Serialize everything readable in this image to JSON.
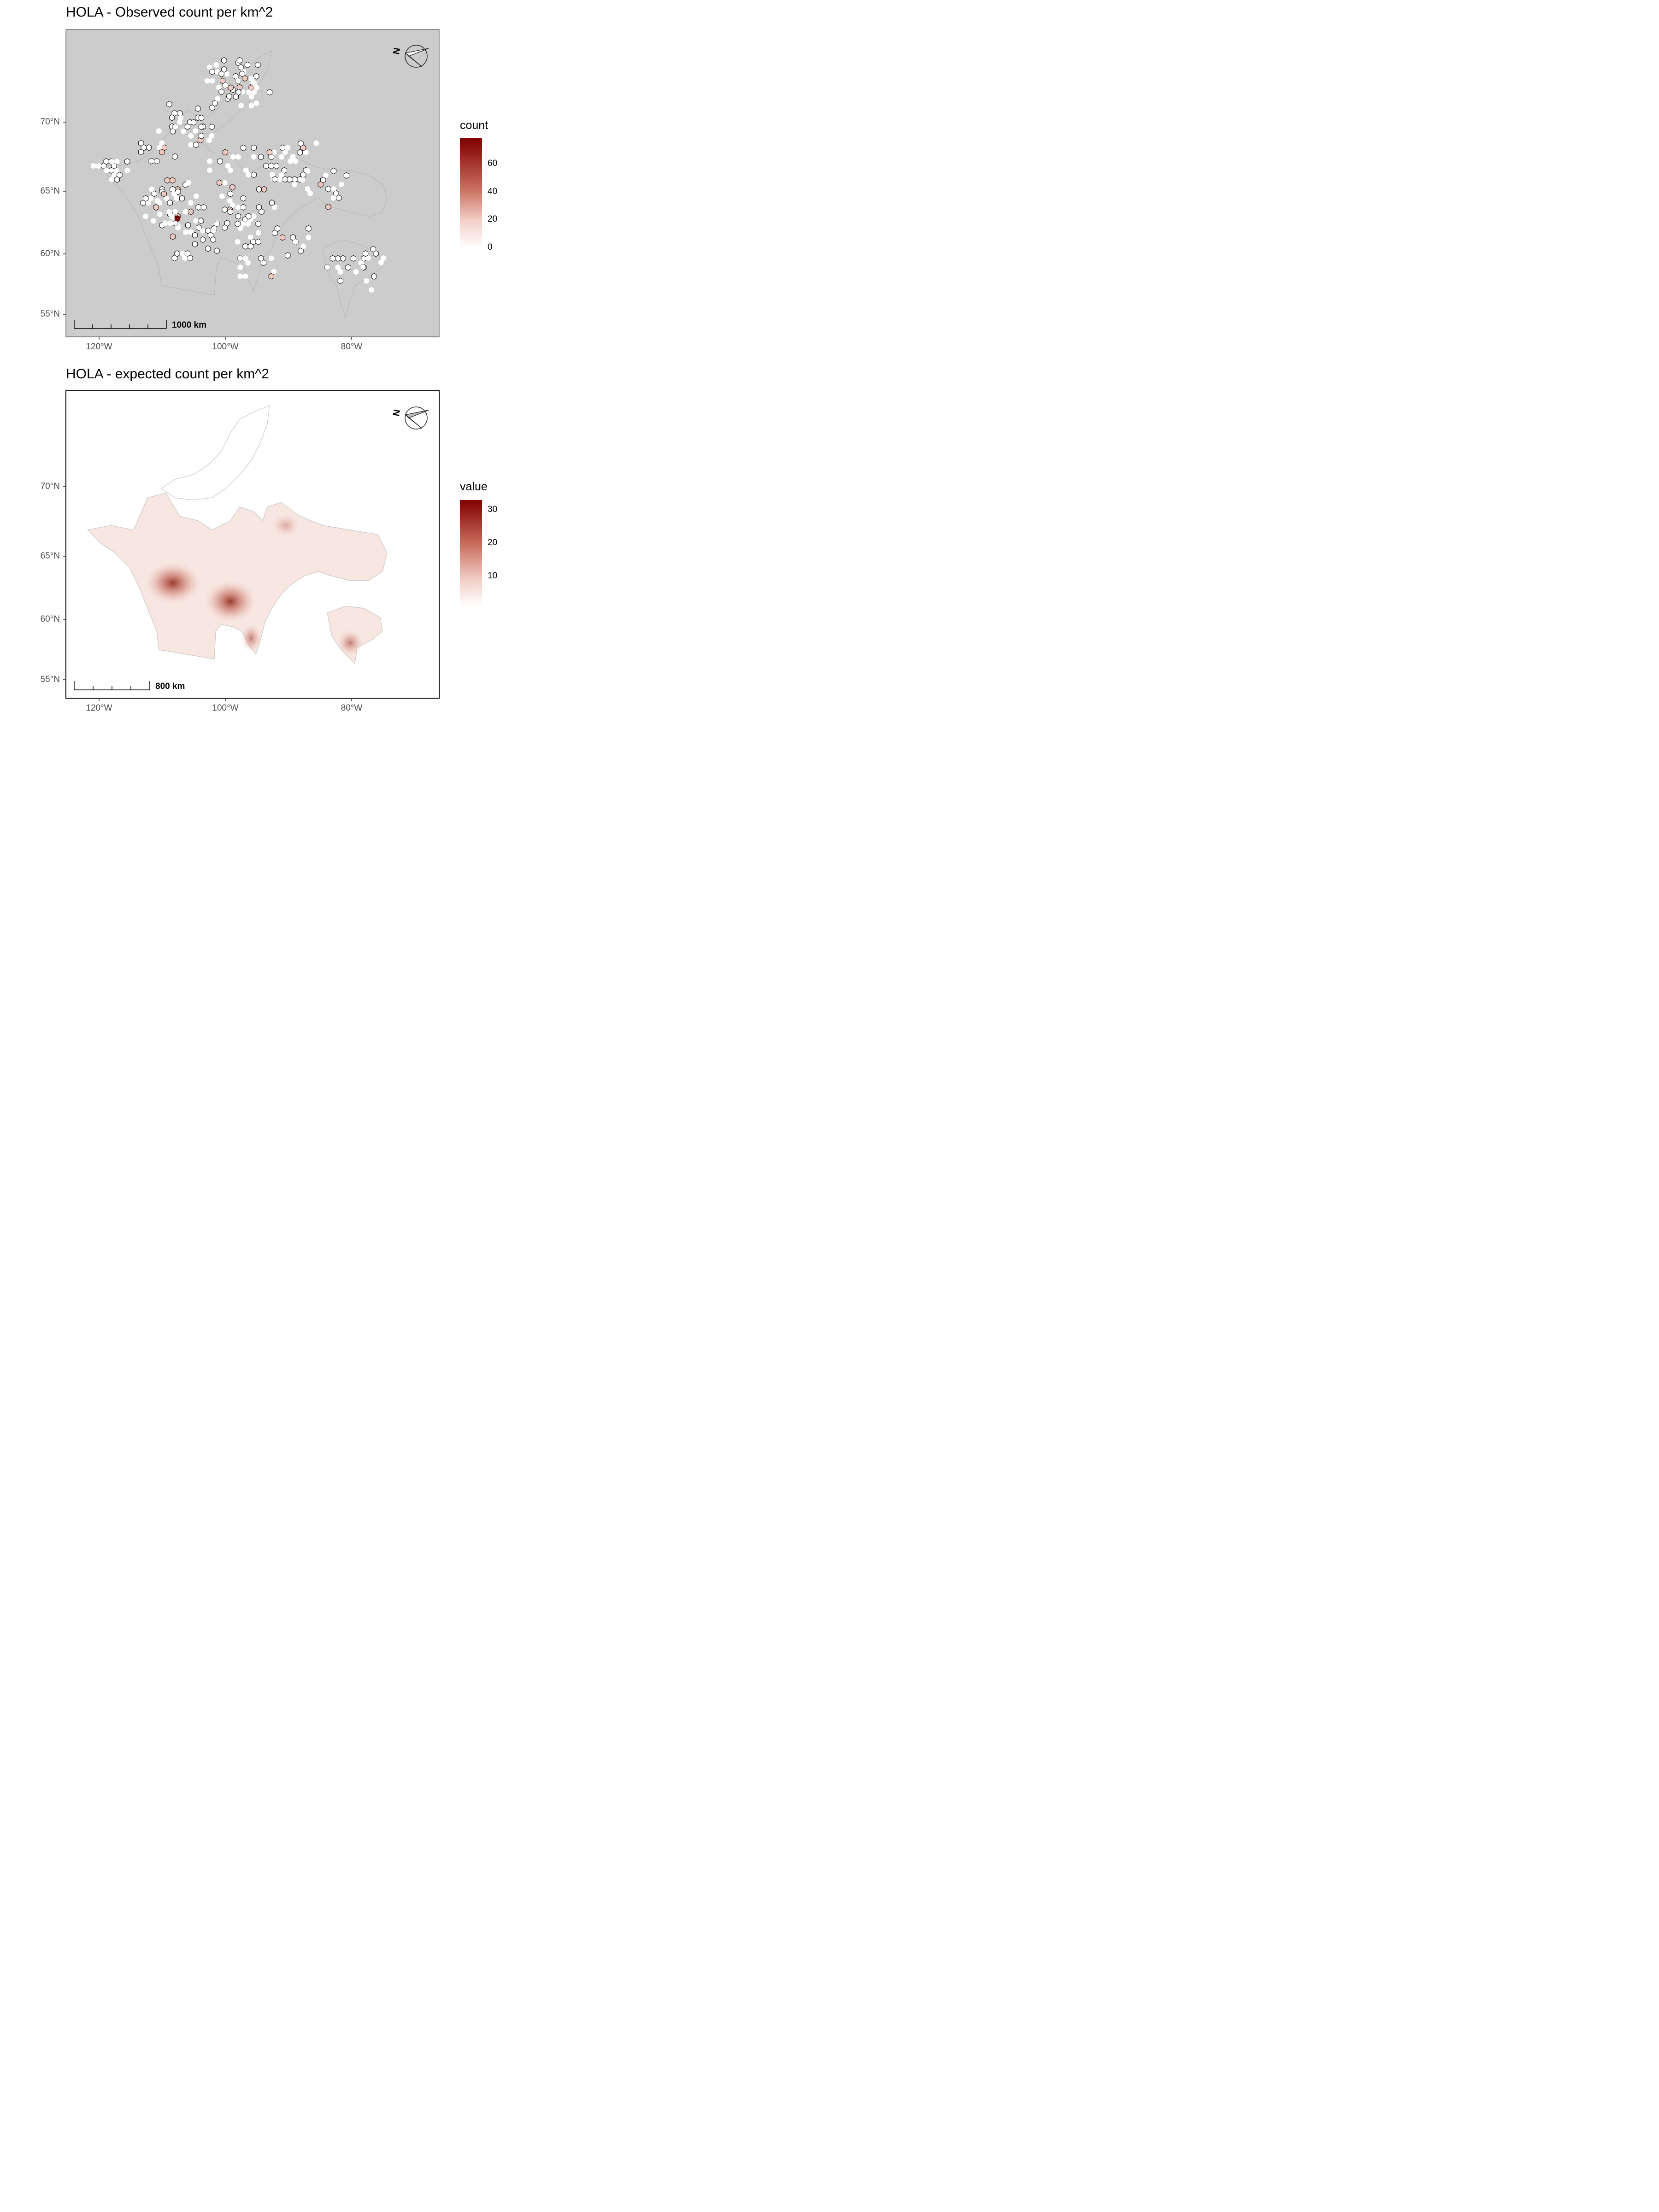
{
  "panels": [
    {
      "title": "HOLA - Observed count per km^2",
      "legend": {
        "title": "count",
        "labels": [
          "60",
          "40",
          "20",
          "0"
        ],
        "color_low": "#ffffff",
        "color_high": "#800000"
      },
      "scalebar_label": "1000 km",
      "north_label": "N",
      "y_ticks": [
        "70°N",
        "65°N",
        "60°N",
        "55°N"
      ],
      "x_ticks": [
        "120°W",
        "100°W",
        "80°W"
      ],
      "panel_background": "#cccccc"
    },
    {
      "title": "HOLA - expected count per km^2",
      "legend": {
        "title": "value",
        "labels": [
          "30",
          "20",
          "10"
        ],
        "color_low": "#ffffff",
        "color_high": "#800000"
      },
      "scalebar_label": "800 km",
      "north_label": "N",
      "y_ticks": [
        "70°N",
        "65°N",
        "60°N",
        "55°N"
      ],
      "x_ticks": [
        "120°W",
        "100°W",
        "80°W"
      ],
      "panel_background": "#ffffff"
    }
  ]
}
